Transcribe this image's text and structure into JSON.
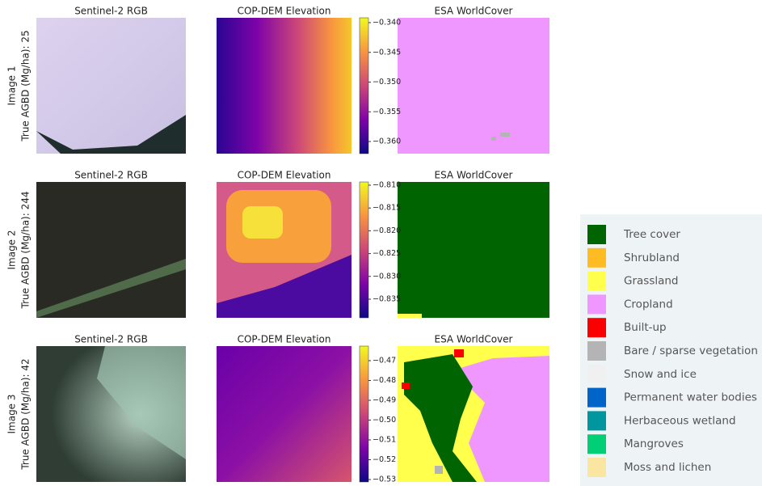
{
  "rows": [
    {
      "label": "Image 1",
      "agbd": "True AGBD (Mg/ha): 25",
      "panels": [
        "Sentinel-2 RGB",
        "COP-DEM Elevation",
        "ESA WorldCover"
      ],
      "colorbar": [
        "−0.340",
        "−0.345",
        "−0.350",
        "−0.355",
        "−0.360"
      ]
    },
    {
      "label": "Image 2",
      "agbd": "True AGBD (Mg/ha): 244",
      "panels": [
        "Sentinel-2 RGB",
        "COP-DEM Elevation",
        "ESA WorldCover"
      ],
      "colorbar": [
        "−0.810",
        "−0.815",
        "−0.820",
        "−0.825",
        "−0.830",
        "−0.835"
      ]
    },
    {
      "label": "Image 3",
      "agbd": "True AGBD (Mg/ha): 42",
      "panels": [
        "Sentinel-2 RGB",
        "COP-DEM Elevation",
        "ESA WorldCover"
      ],
      "colorbar": [
        "−0.47",
        "−0.48",
        "−0.49",
        "−0.50",
        "−0.51",
        "−0.52",
        "−0.53"
      ]
    }
  ],
  "legend": [
    {
      "label": "Tree cover",
      "color": "#006400"
    },
    {
      "label": "Shrubland",
      "color": "#ffbb22"
    },
    {
      "label": "Grassland",
      "color": "#ffff4c"
    },
    {
      "label": "Cropland",
      "color": "#f096ff"
    },
    {
      "label": "Built-up",
      "color": "#fa0000"
    },
    {
      "label": "Bare / sparse vegetation",
      "color": "#b4b4b4"
    },
    {
      "label": "Snow and ice",
      "color": "#f0f0f0"
    },
    {
      "label": "Permanent water bodies",
      "color": "#0064c8"
    },
    {
      "label": "Herbaceous wetland",
      "color": "#0096a0"
    },
    {
      "label": "Mangroves",
      "color": "#00cf75"
    },
    {
      "label": "Moss and lichen",
      "color": "#fae6a0"
    }
  ]
}
